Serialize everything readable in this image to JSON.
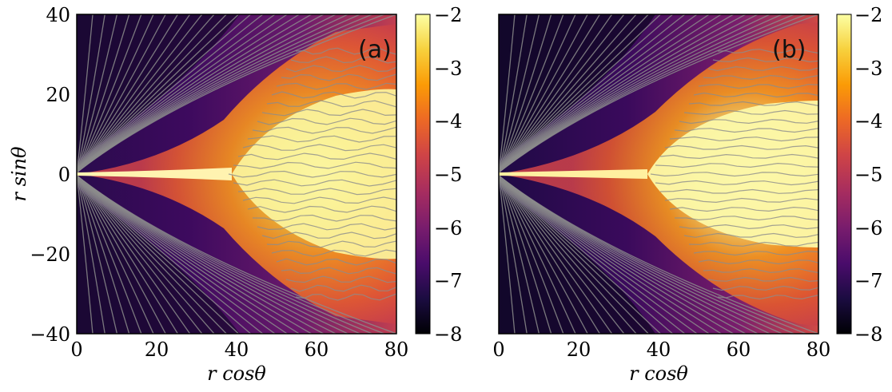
{
  "chart_data": [
    {
      "type": "heatmap",
      "panel_label": "(a)",
      "xlabel": "r cosθ",
      "ylabel": "r sinθ",
      "xlim": [
        0,
        80
      ],
      "ylim": [
        -40,
        40
      ],
      "x_ticks": [
        "0",
        "20",
        "40",
        "60",
        "80"
      ],
      "y_ticks": [
        "40",
        "20",
        "0",
        "−20",
        "−40"
      ],
      "colorbar": {
        "range": [
          -8,
          -2
        ],
        "ticks": [
          "−2",
          "−3",
          "−4",
          "−5",
          "−6",
          "−7",
          "−8"
        ]
      },
      "overlay": "streamlines"
    },
    {
      "type": "heatmap",
      "panel_label": "(b)",
      "xlabel": "r cosθ",
      "ylabel": "",
      "xlim": [
        0,
        80
      ],
      "ylim": [
        -40,
        40
      ],
      "x_ticks": [
        "0",
        "20",
        "40",
        "60",
        "80"
      ],
      "y_ticks": [],
      "colorbar": {
        "range": [
          -8,
          -2
        ],
        "ticks": [
          "−2",
          "−3",
          "−4",
          "−5",
          "−6",
          "−7",
          "−8"
        ]
      },
      "overlay": "streamlines"
    }
  ],
  "colors": {
    "colormap": [
      "#000004",
      "#1b0c41",
      "#4a0c6b",
      "#781c6d",
      "#a52c60",
      "#cf4446",
      "#ed6925",
      "#fb9b06",
      "#f7d13d",
      "#fcffa4"
    ],
    "streamline": "#8c8c8c"
  }
}
